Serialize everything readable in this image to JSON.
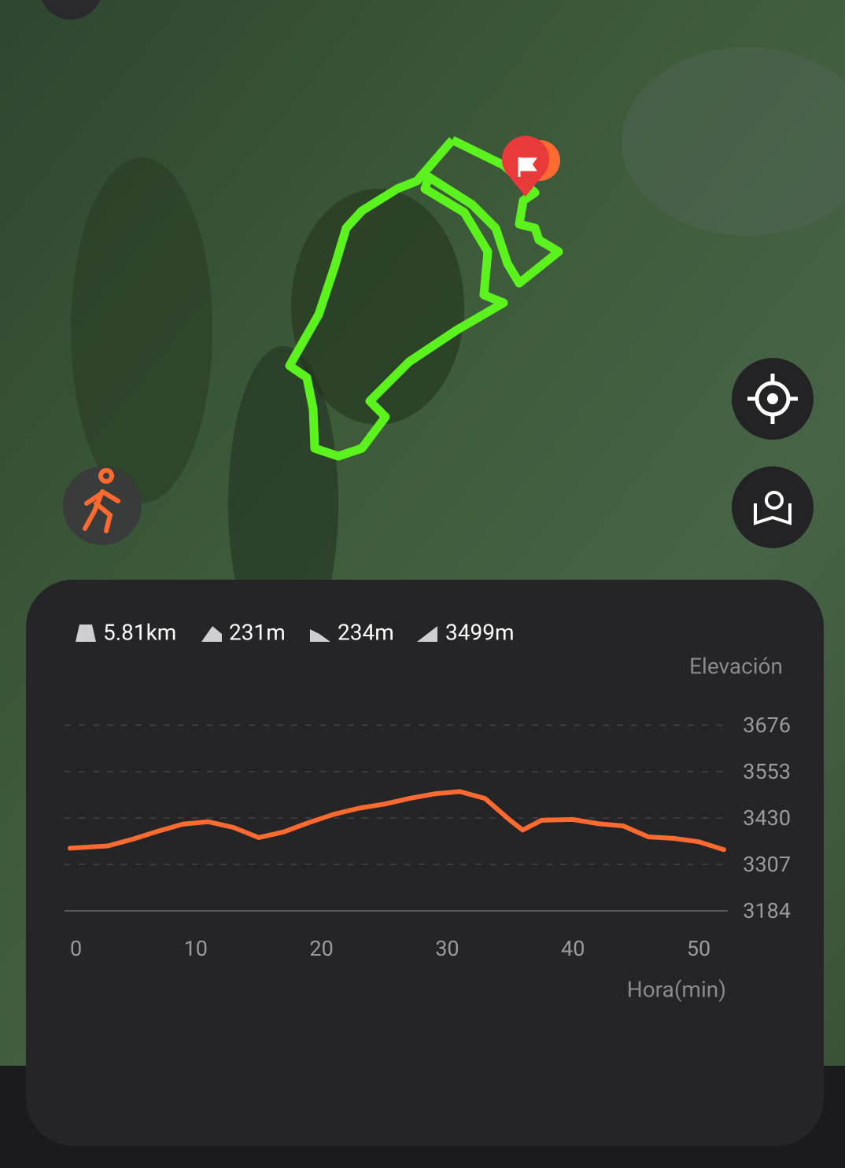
{
  "stats": [
    "5.81km",
    "231m",
    "234m",
    "3499m"
  ],
  "chart_data": {
    "type": "line",
    "title": "Elevación",
    "x_label": "Hora(min)",
    "x": [
      0,
      3,
      5,
      7,
      9,
      11,
      13,
      15,
      17,
      19,
      21,
      23,
      25,
      27,
      29,
      31,
      33,
      35,
      36,
      37.5,
      40,
      42,
      44,
      46,
      48,
      50,
      52
    ],
    "values": [
      3350,
      3356,
      3374,
      3395,
      3414,
      3420,
      3405,
      3378,
      3393,
      3418,
      3440,
      3456,
      3467,
      3482,
      3494,
      3500,
      3482,
      3424,
      3398,
      3424,
      3426,
      3415,
      3409,
      3380,
      3376,
      3367,
      3346
    ],
    "color": "#ff6a30",
    "xlim": [
      0,
      52
    ],
    "xticks": [
      0,
      10,
      20,
      30,
      40,
      50
    ],
    "ylim": [
      3184,
      3676
    ],
    "yticks": [
      3184,
      3307,
      3430,
      3553,
      3676
    ],
    "grid": true
  }
}
